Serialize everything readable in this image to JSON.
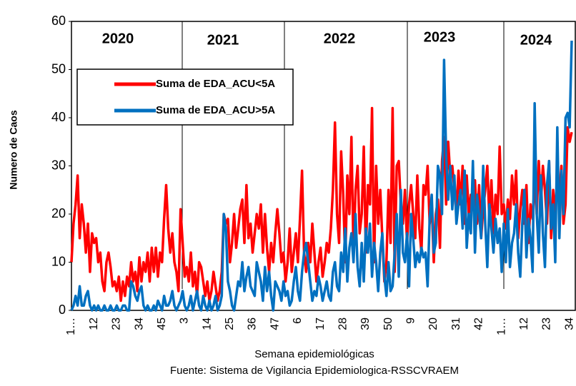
{
  "chart_data": {
    "type": "line",
    "y_label": "Numero de Caos",
    "x_label": "Semana epidemiológicas",
    "source": "Fuente: Sistema de Vigilancia Epidemiologica-RSSCVRAEM",
    "year_labels": [
      "2020",
      "2021",
      "2022",
      "2023",
      "2024"
    ],
    "categories": [
      "1…",
      null,
      null,
      null,
      null,
      null,
      null,
      null,
      null,
      null,
      null,
      "12",
      null,
      null,
      null,
      null,
      null,
      null,
      null,
      null,
      null,
      null,
      "23",
      null,
      null,
      null,
      null,
      null,
      null,
      null,
      null,
      null,
      null,
      "34",
      null,
      null,
      null,
      null,
      null,
      null,
      null,
      null,
      null,
      null,
      "45",
      null,
      null,
      null,
      null,
      null,
      null,
      null,
      null,
      null,
      null,
      "3",
      null,
      null,
      null,
      null,
      null,
      null,
      null,
      null,
      null,
      null,
      "14",
      null,
      null,
      null,
      null,
      null,
      null,
      null,
      null,
      null,
      null,
      "25",
      null,
      null,
      null,
      null,
      null,
      null,
      null,
      null,
      null,
      null,
      "36",
      null,
      null,
      null,
      null,
      null,
      null,
      null,
      null,
      null,
      null,
      "47",
      null,
      null,
      null,
      null,
      null,
      null,
      null,
      null,
      null,
      null,
      "6",
      null,
      null,
      null,
      null,
      null,
      null,
      null,
      null,
      null,
      null,
      "17",
      null,
      null,
      null,
      null,
      null,
      null,
      null,
      null,
      null,
      null,
      "28",
      null,
      null,
      null,
      null,
      null,
      null,
      null,
      null,
      null,
      null,
      "39",
      null,
      null,
      null,
      null,
      null,
      null,
      null,
      null,
      null,
      null,
      "50",
      null,
      null,
      null,
      null,
      null,
      null,
      null,
      null,
      null,
      null,
      "9",
      null,
      null,
      null,
      null,
      null,
      null,
      null,
      null,
      null,
      null,
      "20",
      null,
      null,
      null,
      null,
      null,
      null,
      null,
      null,
      null,
      null,
      "31",
      null,
      null,
      null,
      null,
      null,
      null,
      null,
      null,
      null,
      null,
      "42",
      null,
      null,
      null,
      null,
      null,
      null,
      null,
      null,
      null,
      null,
      "1…",
      null,
      null,
      null,
      null,
      null,
      null,
      null,
      null,
      null,
      null,
      "12",
      null,
      null,
      null,
      null,
      null,
      null,
      null,
      null,
      null,
      null,
      "23",
      null,
      null,
      null,
      null,
      null,
      null,
      null,
      null,
      null,
      null,
      "34",
      null
    ],
    "series": [
      {
        "name": "Suma de EDA_ACU<5A",
        "color": "#ff0000",
        "values": [
          10,
          18,
          22,
          28,
          15,
          22,
          18,
          12,
          18,
          8,
          16,
          14,
          15,
          10,
          12,
          6,
          4,
          10,
          12,
          9,
          5,
          6,
          4,
          7,
          2,
          6,
          3,
          7,
          5,
          10,
          6,
          8,
          4,
          11,
          6,
          10,
          8,
          12,
          6,
          13,
          8,
          13,
          7,
          12,
          10,
          19,
          26,
          17,
          12,
          16,
          10,
          8,
          4,
          21,
          14,
          7,
          9,
          6,
          12,
          5,
          8,
          3,
          10,
          9,
          6,
          3,
          6,
          2,
          4,
          8,
          5,
          2,
          4,
          8,
          20,
          18,
          19,
          10,
          14,
          20,
          13,
          17,
          21,
          23,
          14,
          26,
          15,
          18,
          12,
          16,
          20,
          17,
          22,
          12,
          20,
          13,
          8,
          14,
          10,
          16,
          21,
          16,
          10,
          12,
          6,
          10,
          17,
          8,
          12,
          16,
          10,
          19,
          29,
          12,
          8,
          14,
          10,
          18,
          12,
          6,
          10,
          13,
          7,
          10,
          14,
          12,
          17,
          25,
          39,
          20,
          14,
          33,
          24,
          10,
          28,
          20,
          36,
          12,
          25,
          30,
          16,
          20,
          34,
          12,
          26,
          22,
          42,
          10,
          30,
          18,
          25,
          15,
          6,
          10,
          25,
          14,
          42,
          8,
          30,
          31,
          22,
          18,
          25,
          14,
          22,
          26,
          20,
          15,
          28,
          17,
          12,
          26,
          24,
          30,
          18,
          22,
          10,
          20,
          23,
          13,
          31,
          36,
          22,
          35,
          28,
          30,
          25,
          20,
          29,
          22,
          30,
          18,
          28,
          20,
          24,
          23,
          27,
          18,
          26,
          15,
          21,
          25,
          30,
          19,
          27,
          16,
          24,
          20,
          34,
          20,
          22,
          17,
          23,
          19,
          28,
          22,
          29,
          15,
          21,
          25,
          18,
          26,
          14,
          22,
          19,
          27,
          20,
          31,
          22,
          30,
          25,
          18,
          31,
          15,
          25,
          20,
          28,
          24,
          30,
          18,
          22,
          38,
          35,
          37
        ]
      },
      {
        "name": "Suma de EDA_ACU>5A",
        "color": "#0070c0",
        "values": [
          0,
          1,
          3,
          1,
          5,
          1,
          1,
          3,
          4,
          1,
          0,
          1,
          0,
          1,
          0,
          0,
          1,
          0,
          0,
          1,
          0,
          0,
          1,
          0,
          0,
          1,
          1,
          0,
          0,
          6,
          5,
          3,
          2,
          4,
          5,
          1,
          0,
          1,
          0,
          0,
          1,
          0,
          2,
          1,
          0,
          3,
          1,
          1,
          2,
          4,
          1,
          0,
          1,
          2,
          4,
          1,
          0,
          1,
          3,
          0,
          2,
          4,
          1,
          0,
          3,
          1,
          0,
          2,
          0,
          1,
          3,
          0,
          1,
          3,
          20,
          17,
          6,
          4,
          1,
          0,
          3,
          6,
          5,
          10,
          4,
          7,
          9,
          5,
          4,
          3,
          10,
          8,
          6,
          2,
          9,
          4,
          8,
          3,
          0,
          6,
          5,
          4,
          2,
          6,
          3,
          4,
          1,
          2,
          6,
          9,
          4,
          2,
          8,
          12,
          14,
          10,
          6,
          2,
          4,
          3,
          7,
          5,
          2,
          4,
          6,
          3,
          2,
          8,
          10,
          5,
          4,
          12,
          8,
          17,
          6,
          13,
          16,
          10,
          20,
          9,
          5,
          14,
          6,
          17,
          12,
          18,
          7,
          14,
          10,
          4,
          12,
          16,
          7,
          3,
          10,
          4,
          5,
          12,
          20,
          7,
          25,
          12,
          10,
          16,
          5,
          20,
          15,
          9,
          12,
          10,
          13,
          11,
          12,
          5,
          19,
          24,
          12,
          14,
          30,
          28,
          20,
          52,
          32,
          23,
          30,
          21,
          28,
          18,
          22,
          25,
          17,
          29,
          13,
          20,
          16,
          31,
          12,
          24,
          20,
          15,
          30,
          18,
          9,
          22,
          17,
          12,
          19,
          14,
          17,
          8,
          18,
          10,
          21,
          9,
          14,
          16,
          22,
          12,
          7,
          18,
          25,
          11,
          19,
          15,
          8,
          43,
          20,
          12,
          28,
          16,
          9,
          26,
          31,
          17,
          22,
          10,
          38,
          15,
          29,
          20,
          40,
          41,
          38,
          56
        ]
      }
    ],
    "ylim": [
      0,
      60
    ],
    "yticks": [
      0,
      10,
      20,
      30,
      40,
      50,
      60
    ],
    "legend": "upper left"
  }
}
